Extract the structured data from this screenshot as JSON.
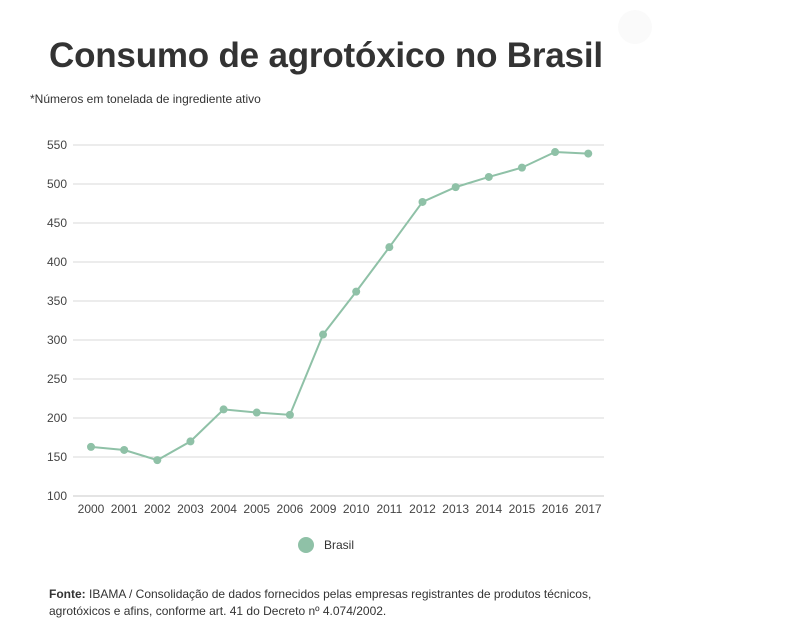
{
  "header": {
    "title": "Consumo de agrotóxico no Brasil",
    "subtitle": "*Números em tonelada de ingrediente ativo"
  },
  "colors": {
    "series": "#8fc1a7",
    "grid": "#d9d9d9"
  },
  "chart_data": {
    "type": "line",
    "title": "Consumo de agrotóxico no Brasil",
    "subtitle": "*Números em tonelada de ingrediente ativo",
    "x": [
      "2000",
      "2001",
      "2002",
      "2003",
      "2004",
      "2005",
      "2006",
      "2009",
      "2010",
      "2011",
      "2012",
      "2013",
      "2014",
      "2015",
      "2016",
      "2017"
    ],
    "series": [
      {
        "name": "Brasil",
        "values": [
          163,
          159,
          146,
          170,
          211,
          207,
          204,
          307,
          362,
          419,
          477,
          496,
          509,
          521,
          541,
          539
        ]
      }
    ],
    "yticks": [
      100,
      150,
      200,
      250,
      300,
      350,
      400,
      450,
      500,
      550
    ],
    "ylim": [
      100,
      550
    ],
    "grid": true,
    "legend": "bottom"
  },
  "legend": {
    "label": "Brasil"
  },
  "footer": {
    "source_label": "Fonte:",
    "source_text": " IBAMA /   Consolidação de dados fornecidos pelas empresas registrantes de produtos técnicos, agrotóxicos e afins, conforme art. 41 do Decreto nº 4.074/2002."
  }
}
